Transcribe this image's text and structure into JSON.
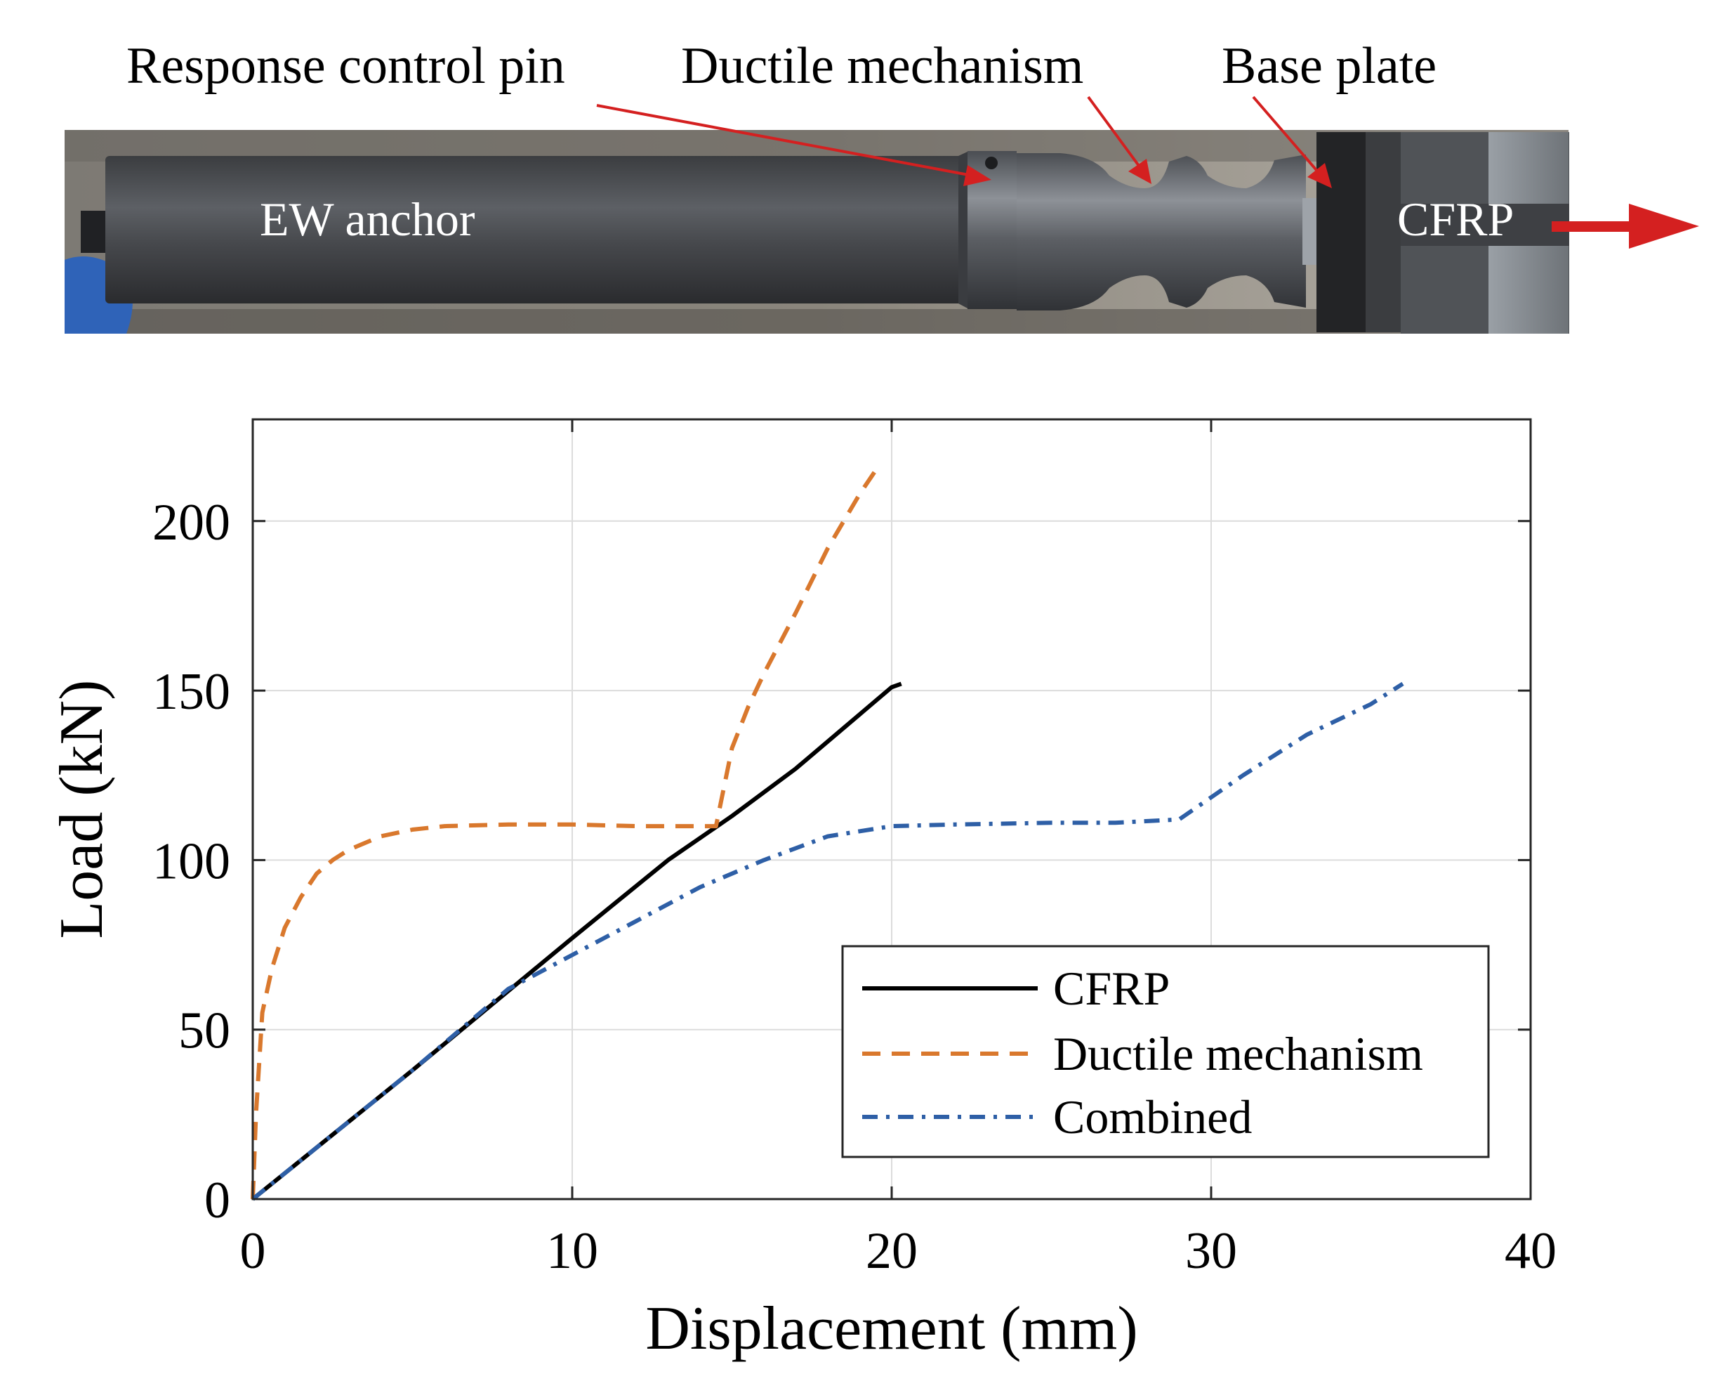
{
  "photo": {
    "callouts": {
      "response_control_pin": "Response control pin",
      "ductile_mechanism": "Ductile mechanism",
      "base_plate": "Base plate"
    },
    "labels": {
      "ew_anchor": "EW anchor",
      "cfrp": "CFRP"
    },
    "colors": {
      "arrow": "#d42020",
      "label_text": "#ffffff",
      "callout_text": "#000000"
    }
  },
  "chart_data": {
    "type": "line",
    "title": "",
    "xlabel": "Displacement (mm)",
    "ylabel": "Load (kN)",
    "xlim": [
      0,
      40
    ],
    "ylim": [
      0,
      230
    ],
    "xticks": [
      0,
      10,
      20,
      30,
      40
    ],
    "yticks": [
      0,
      50,
      100,
      150,
      200
    ],
    "xtick_labels": [
      "0",
      "10",
      "20",
      "30",
      "40"
    ],
    "ytick_labels": [
      "0",
      "50",
      "100",
      "150",
      "200"
    ],
    "grid": true,
    "legend_position": "bottom-right",
    "series": [
      {
        "name": "CFRP",
        "color": "#000000",
        "dash": "solid",
        "x": [
          0,
          5,
          10,
          13,
          15,
          17,
          19,
          20,
          20.3
        ],
        "y": [
          0,
          38,
          77,
          100,
          113,
          127,
          143,
          151,
          152
        ]
      },
      {
        "name": "Ductile mechanism",
        "color": "#d9782d",
        "dash": "dash",
        "x": [
          0,
          0.1,
          0.3,
          0.6,
          1.0,
          1.5,
          2.0,
          2.5,
          3.0,
          4.0,
          5.0,
          6.0,
          8.0,
          10.0,
          12.0,
          14.0,
          14.5,
          15.0,
          15.5,
          16.0,
          17.0,
          18.0,
          19.0,
          19.5
        ],
        "y": [
          0,
          25,
          55,
          68,
          80,
          89,
          96,
          100,
          103,
          107,
          109,
          110,
          110.5,
          110.5,
          110,
          110,
          110,
          133,
          145,
          155,
          173,
          192,
          208,
          215
        ]
      },
      {
        "name": "Combined",
        "color": "#2e5fa6",
        "dash": "dashdot",
        "x": [
          0,
          5,
          8,
          10,
          12,
          14,
          16,
          18,
          20,
          22,
          25,
          27,
          29,
          31,
          33,
          35,
          36
        ],
        "y": [
          0,
          38,
          62,
          72,
          82,
          92,
          100,
          107,
          110,
          110.5,
          111,
          111,
          112,
          125,
          137,
          146,
          152
        ]
      }
    ]
  }
}
